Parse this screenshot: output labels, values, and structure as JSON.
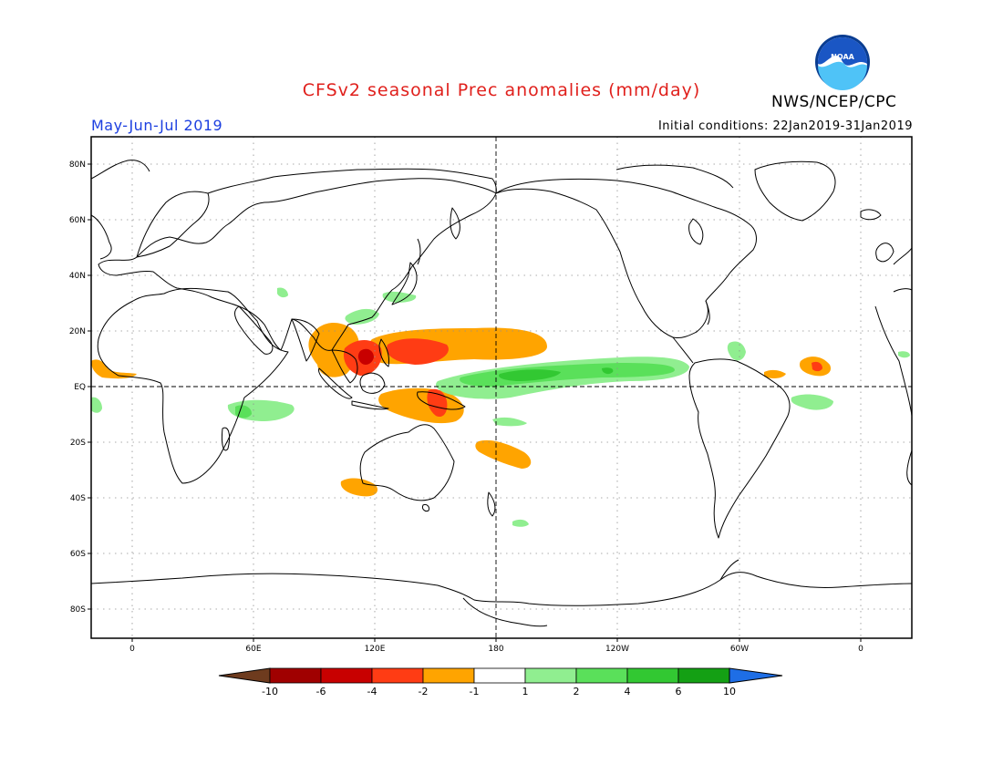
{
  "title": "CFSv2 seasonal Prec anomalies (mm/day)",
  "period": "May-Jun-Jul 2019",
  "agency": "NWS/NCEP/CPC",
  "logo_text": "NOAA",
  "initial_conditions": "Initial conditions: 22Jan2019-31Jan2019",
  "lat_labels": [
    "80N",
    "60N",
    "40N",
    "20N",
    "EQ",
    "20S",
    "40S",
    "60S",
    "80S"
  ],
  "lon_labels": [
    "0",
    "60E",
    "120E",
    "180",
    "120W",
    "60W",
    "0"
  ],
  "colorbar": {
    "labels": [
      "-10",
      "-6",
      "-4",
      "-2",
      "-1",
      "1",
      "2",
      "4",
      "6",
      "10"
    ],
    "colors": [
      "#6e3b1e",
      "#a00000",
      "#c80000",
      "#ff3c14",
      "#ffa400",
      "#ffffff",
      "#90ee90",
      "#5ae05a",
      "#32c832",
      "#14a014",
      "#1e6ee6"
    ]
  },
  "anomaly_colors": {
    "orange": "#ffa400",
    "red_orange": "#ff3c14",
    "red": "#c80000",
    "light_green": "#90ee90",
    "green": "#5ae05a",
    "dark_green": "#32c832"
  }
}
